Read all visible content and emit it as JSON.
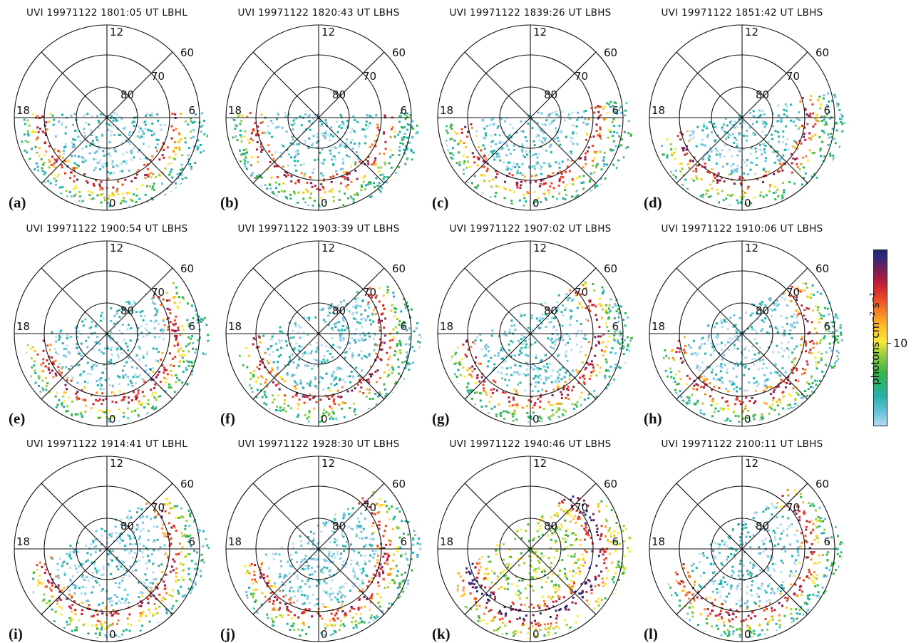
{
  "panels": [
    {
      "label": "(a)",
      "title": "UVI 19971122  1801:05 UT LBHL"
    },
    {
      "label": "(b)",
      "title": "UVI 19971122  1820:43 UT LBHS"
    },
    {
      "label": "(c)",
      "title": "UVI 19971122  1839:26 UT LBHS"
    },
    {
      "label": "(d)",
      "title": "UVI 19971122  1851:42 UT LBHS"
    },
    {
      "label": "(e)",
      "title": "UVI 19971122  1900:54 UT LBHS"
    },
    {
      "label": "(f)",
      "title": "UVI 19971122  1903:39 UT LBHS"
    },
    {
      "label": "(g)",
      "title": "UVI 19971122  1907:02 UT LBHS"
    },
    {
      "label": "(h)",
      "title": "UVI 19971122  1910:06 UT LBHS"
    },
    {
      "label": "(i)",
      "title": "UVI 19971122  1914:41 UT LBHL"
    },
    {
      "label": "(j)",
      "title": "UVI 19971122  1928:30 UT LBHS"
    },
    {
      "label": "(k)",
      "title": "UVI 19971122  1940:46 UT LBHS"
    },
    {
      "label": "(l)",
      "title": "UVI 19971122  2100:11 UT LBHS"
    }
  ],
  "grid": {
    "mlt_labels": {
      "top": "12",
      "right": "6",
      "bottom": "0",
      "left": "18"
    },
    "latitude_labels": [
      "60",
      "70",
      "80"
    ]
  },
  "colorbar": {
    "title": "photons cm",
    "title_sup1": "−2",
    "title_mid": " s",
    "title_sup2": "−1",
    "tick_label": "10",
    "colors": [
      "#b6dcf3",
      "#6cc3de",
      "#23b1a8",
      "#38b64a",
      "#9bcf3b",
      "#ffe838",
      "#ffc026",
      "#f7882a",
      "#e84327",
      "#c01e3a",
      "#7a1e55",
      "#2b2c7c"
    ]
  }
}
